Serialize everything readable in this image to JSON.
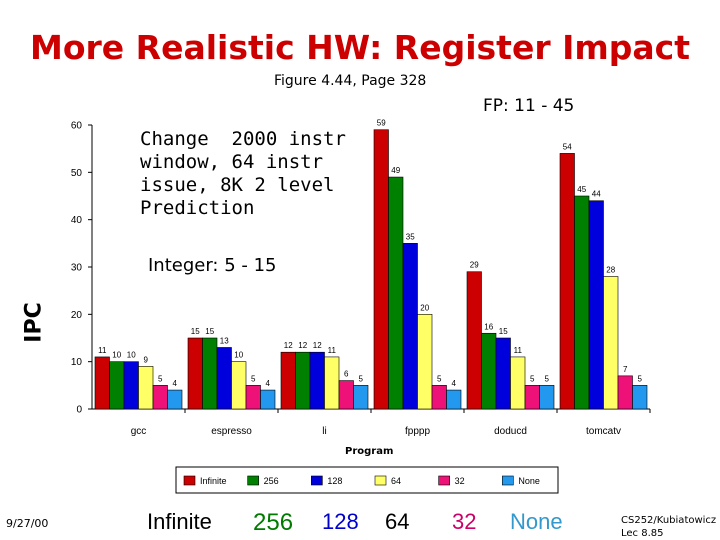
{
  "slide": {
    "title": "More Realistic HW: Register Impact",
    "subtitle": "Figure 4.44, Page 328",
    "fp_label": "FP: 11 - 45",
    "integer_label": "Integer: 5 - 15",
    "change_note": "Change  2000 instr\nwindow, 64 instr\nissue, 8K 2 level\nPrediction",
    "date": "9/27/00",
    "credit": "CS252/Kubiatowicz\nLec 8.85"
  },
  "bottom_legend": [
    {
      "label": "Infinite",
      "color": "#000000"
    },
    {
      "label": "256",
      "color": "#007a00"
    },
    {
      "label": "128",
      "color": "#0000cc"
    },
    {
      "label": "64",
      "color": "#000000"
    },
    {
      "label": "32",
      "color": "#cc0066"
    },
    {
      "label": "None",
      "color": "#3399cc"
    }
  ],
  "chart_data": {
    "type": "bar",
    "title": "",
    "xlabel": "Program",
    "ylabel": "IPC",
    "ylim": [
      0,
      60
    ],
    "yticks": [
      "0",
      "10",
      "20",
      "30",
      "40",
      "50",
      "60"
    ],
    "categories": [
      "gcc",
      "espresso",
      "li",
      "fpppp",
      "doducd",
      "tomcatv"
    ],
    "series": [
      {
        "name": "Infinite",
        "color": "#cc0000",
        "values": [
          11,
          15,
          12,
          59,
          29,
          54
        ],
        "labels": [
          "11",
          "15",
          "12",
          "59",
          "29",
          "54"
        ]
      },
      {
        "name": "256",
        "color": "#008000",
        "values": [
          10,
          15,
          12,
          49,
          16,
          45
        ],
        "labels": [
          "10",
          "15",
          "12",
          "49",
          "16",
          "45"
        ]
      },
      {
        "name": "128",
        "color": "#0000dd",
        "values": [
          10,
          13,
          12,
          35,
          15,
          44
        ],
        "labels": [
          "10",
          "13",
          "12",
          "35",
          "15",
          "44"
        ]
      },
      {
        "name": "64",
        "color": "#ffff66",
        "values": [
          9,
          10,
          11,
          20,
          11,
          28
        ],
        "labels": [
          "9",
          "10",
          "11",
          "20",
          "11",
          "28"
        ]
      },
      {
        "name": "32",
        "color": "#ee1177",
        "values": [
          5,
          5,
          6,
          5,
          5,
          7
        ],
        "labels": [
          "5",
          "5",
          "6",
          "5",
          "5",
          "7"
        ]
      },
      {
        "name": "None",
        "color": "#2299ee",
        "values": [
          4,
          4,
          5,
          4,
          5,
          5
        ],
        "labels": [
          "4",
          "4",
          "5",
          "4",
          "5",
          "5"
        ]
      }
    ],
    "legend_position": "bottom",
    "grid": false
  }
}
